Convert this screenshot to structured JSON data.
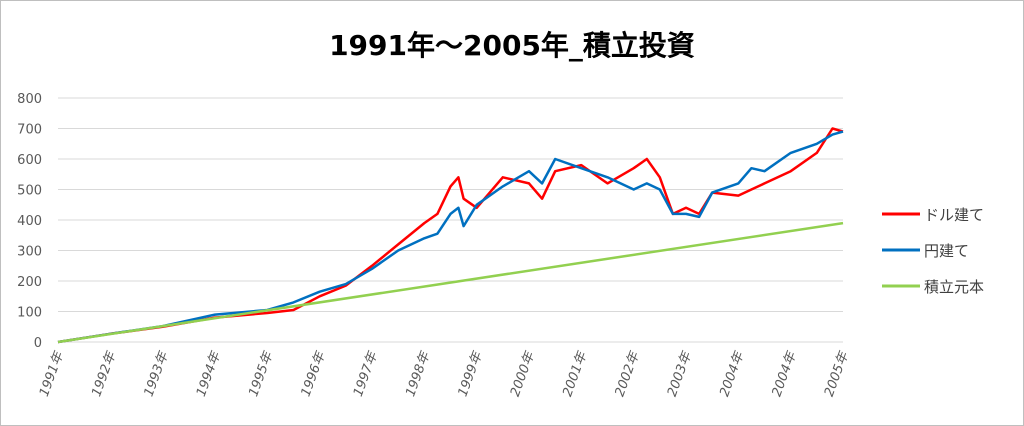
{
  "chart_data": {
    "type": "line",
    "title": "1991年～2005年_積立投資",
    "xlabel": "",
    "ylabel": "",
    "ylim": [
      0,
      800
    ],
    "yticks": [
      "0",
      "100",
      "200",
      "300",
      "400",
      "500",
      "600",
      "700",
      "800"
    ],
    "grid": true,
    "legend_position": "right",
    "categories": [
      "1991年",
      "1992年",
      "1993年",
      "1994年",
      "1995年",
      "1996年",
      "1997年",
      "1998年",
      "1999年",
      "2000年",
      "2001年",
      "2002年",
      "2003年",
      "2004年",
      "2004年",
      "2005年"
    ],
    "series": [
      {
        "name": "ドル建て",
        "color": "#ff0000",
        "x": [
          0,
          1,
          2,
          3,
          4,
          4.5,
          5,
          5.5,
          6,
          6.5,
          7,
          7.25,
          7.5,
          7.65,
          7.75,
          8,
          8.5,
          9,
          9.25,
          9.5,
          10,
          10.5,
          11,
          11.25,
          11.5,
          11.75,
          12,
          12.25,
          12.5,
          13,
          13.25,
          13.5,
          14,
          14.5,
          14.8,
          15
        ],
        "values": [
          0,
          27,
          50,
          80,
          95,
          105,
          150,
          185,
          250,
          320,
          390,
          420,
          510,
          540,
          470,
          440,
          540,
          520,
          470,
          560,
          580,
          520,
          570,
          600,
          540,
          420,
          440,
          420,
          490,
          480,
          500,
          520,
          560,
          620,
          700,
          690
        ]
      },
      {
        "name": "円建て",
        "color": "#0070c0",
        "x": [
          0,
          1,
          2,
          3,
          4,
          4.5,
          5,
          5.5,
          6,
          6.5,
          7,
          7.25,
          7.5,
          7.65,
          7.75,
          8,
          8.5,
          9,
          9.25,
          9.5,
          10,
          10.5,
          11,
          11.25,
          11.5,
          11.75,
          12,
          12.25,
          12.5,
          13,
          13.25,
          13.5,
          14,
          14.5,
          14.8,
          15
        ],
        "values": [
          0,
          27,
          52,
          90,
          105,
          130,
          165,
          190,
          240,
          300,
          340,
          355,
          420,
          440,
          380,
          450,
          510,
          560,
          520,
          600,
          570,
          540,
          500,
          520,
          500,
          420,
          420,
          410,
          490,
          520,
          570,
          560,
          620,
          650,
          680,
          690
        ]
      },
      {
        "name": "積立元本",
        "color": "#92d050",
        "x": [
          0,
          15
        ],
        "values": [
          0,
          390
        ]
      }
    ]
  }
}
